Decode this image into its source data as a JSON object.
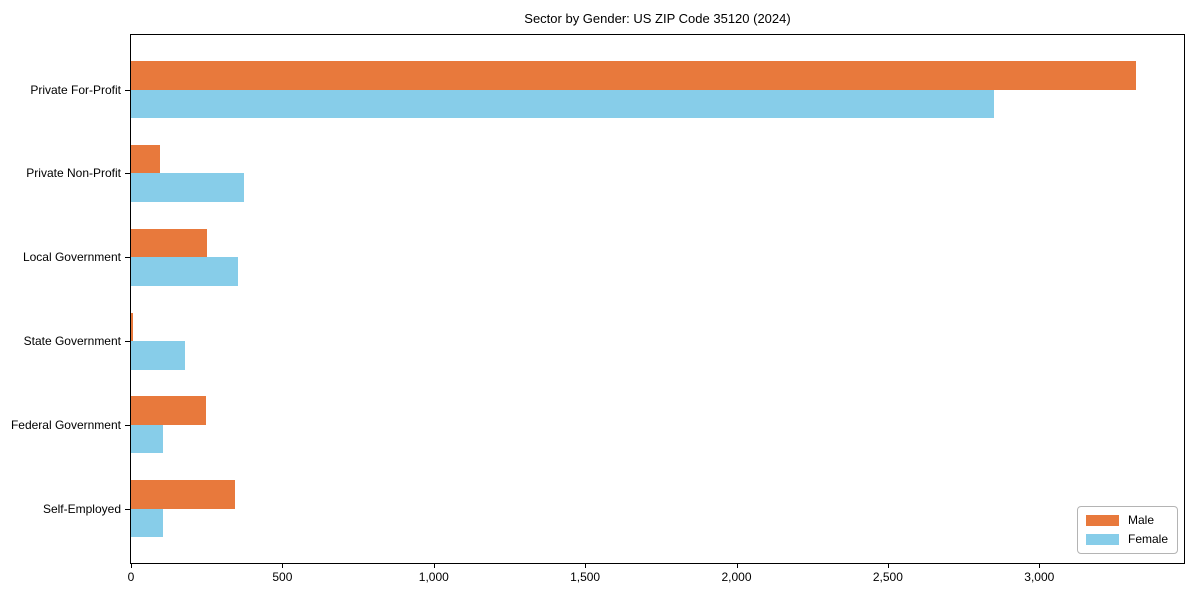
{
  "chart_data": {
    "type": "bar",
    "orientation": "horizontal",
    "title": "Sector by Gender: US ZIP Code 35120 (2024)",
    "categories": [
      "Private For-Profit",
      "Private Non-Profit",
      "Local Government",
      "State Government",
      "Federal Government",
      "Self-Employed"
    ],
    "series": [
      {
        "name": "Male",
        "color": "#e8793c",
        "values": [
          3318,
          94,
          252,
          8,
          249,
          344
        ]
      },
      {
        "name": "Female",
        "color": "#87cde9",
        "values": [
          2850,
          372,
          352,
          177,
          104,
          104
        ]
      }
    ],
    "xlabel": "",
    "ylabel": "",
    "xlim": [
      0,
      3478
    ],
    "x_ticks": [
      0,
      500,
      1000,
      1500,
      2000,
      2500,
      3000
    ],
    "x_tick_labels": [
      "0",
      "500",
      "1,000",
      "1,500",
      "2,000",
      "2,500",
      "3,000"
    ],
    "grid": false,
    "legend_position": "lower right",
    "axes_border_color": "#000000",
    "background_color": "#ffffff"
  }
}
